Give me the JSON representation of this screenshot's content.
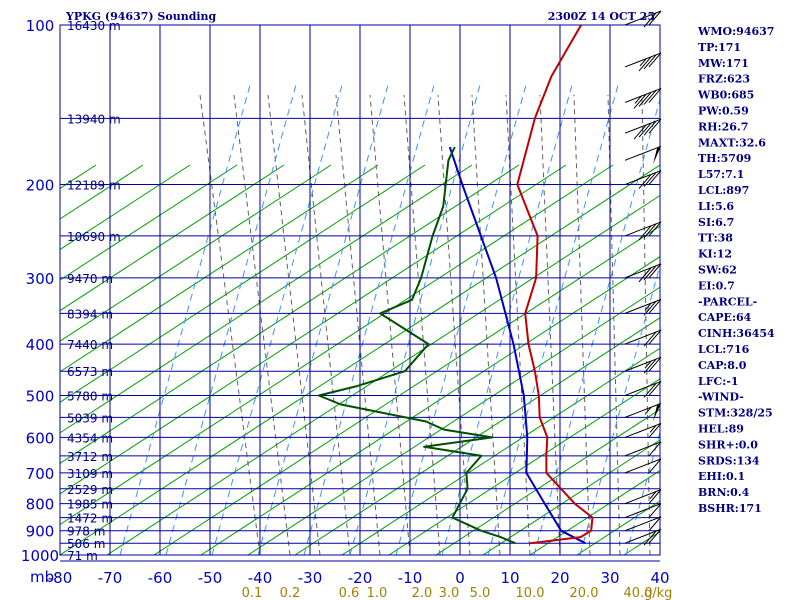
{
  "header": {
    "station": "YPKG (94637) Sounding",
    "time": "2300Z 14 OCT 25"
  },
  "colors": {
    "grid": "#0000a0",
    "dry_adiabat": "#00a000",
    "moist_adiabat": "#606060",
    "mixing_ratio": "#4090ff",
    "temperature": "#c00000",
    "dewpoint": "#005000",
    "parcel": "#0000c0",
    "mixing_label": "#a08000"
  },
  "chart_data": {
    "type": "skew-t",
    "pressure_unit": "mb",
    "temperature_unit": "C",
    "mixing_unit": "g/kg",
    "xlim": [
      -80,
      40
    ],
    "plim": [
      1000,
      100
    ],
    "pressure_ticks": [
      "100",
      "200",
      "300",
      "400",
      "500",
      "600",
      "700",
      "800",
      "900",
      "1000"
    ],
    "temperature_ticks": [
      "-80",
      "-70",
      "-60",
      "-50",
      "-40",
      "-30",
      "-20",
      "-10",
      "0",
      "10",
      "20",
      "30",
      "40"
    ],
    "mixing_ratio_labels": [
      "0.1",
      "0.2",
      "0.6",
      "1.0",
      "2.0",
      "3.0",
      "5.0",
      "10.0",
      "20.0",
      "40.0"
    ],
    "height_labels": [
      {
        "p": 100,
        "h": "16430 m"
      },
      {
        "p": 150,
        "h": "13940 m"
      },
      {
        "p": 200,
        "h": "12189 m"
      },
      {
        "p": 250,
        "h": "10690 m"
      },
      {
        "p": 300,
        "h": "9470 m"
      },
      {
        "p": 350,
        "h": "8394 m"
      },
      {
        "p": 400,
        "h": "7440 m"
      },
      {
        "p": 450,
        "h": "6573 m"
      },
      {
        "p": 500,
        "h": "5780 m"
      },
      {
        "p": 550,
        "h": "5039 m"
      },
      {
        "p": 600,
        "h": "4354 m"
      },
      {
        "p": 650,
        "h": "3712 m"
      },
      {
        "p": 700,
        "h": "3109 m"
      },
      {
        "p": 750,
        "h": "2529 m"
      },
      {
        "p": 800,
        "h": "1985 m"
      },
      {
        "p": 850,
        "h": "1472 m"
      },
      {
        "p": 900,
        "h": "978 m"
      },
      {
        "p": 950,
        "h": "506 m"
      },
      {
        "p": 1000,
        "h": "71 m"
      }
    ],
    "temperature_profile": [
      [
        950,
        12
      ],
      [
        925,
        21
      ],
      [
        900,
        22
      ],
      [
        850,
        20
      ],
      [
        800,
        14
      ],
      [
        700,
        3
      ],
      [
        650,
        0
      ],
      [
        600,
        -3
      ],
      [
        550,
        -8
      ],
      [
        500,
        -12
      ],
      [
        450,
        -17
      ],
      [
        400,
        -23
      ],
      [
        350,
        -29
      ],
      [
        300,
        -33
      ],
      [
        250,
        -40
      ],
      [
        200,
        -53
      ],
      [
        150,
        -61
      ],
      [
        125,
        -65
      ],
      [
        100,
        -68
      ]
    ],
    "dewpoint_profile": [
      [
        950,
        9
      ],
      [
        925,
        5
      ],
      [
        900,
        0
      ],
      [
        850,
        -8
      ],
      [
        800,
        -9
      ],
      [
        750,
        -10
      ],
      [
        700,
        -13
      ],
      [
        650,
        -13
      ],
      [
        625,
        -26
      ],
      [
        600,
        -14
      ],
      [
        580,
        -25
      ],
      [
        560,
        -30
      ],
      [
        520,
        -50
      ],
      [
        500,
        -56
      ],
      [
        480,
        -50
      ],
      [
        450,
        -43
      ],
      [
        400,
        -43
      ],
      [
        350,
        -58
      ],
      [
        330,
        -54
      ],
      [
        300,
        -56
      ],
      [
        250,
        -61
      ],
      [
        220,
        -64
      ],
      [
        180,
        -71
      ],
      [
        170,
        -72
      ]
    ],
    "parcel_profile": [
      [
        950,
        23
      ],
      [
        900,
        16
      ],
      [
        800,
        8
      ],
      [
        700,
        -1
      ],
      [
        600,
        -7
      ],
      [
        500,
        -15
      ],
      [
        400,
        -26
      ],
      [
        300,
        -41
      ],
      [
        200,
        -64
      ],
      [
        170,
        -73
      ]
    ],
    "wind_barbs": [
      {
        "p": 100,
        "spd": 20
      },
      {
        "p": 120,
        "spd": 35
      },
      {
        "p": 140,
        "spd": 45
      },
      {
        "p": 160,
        "spd": 40
      },
      {
        "p": 180,
        "spd": 50
      },
      {
        "p": 200,
        "spd": 30
      },
      {
        "p": 250,
        "spd": 30
      },
      {
        "p": 300,
        "spd": 30
      },
      {
        "p": 350,
        "spd": 25
      },
      {
        "p": 400,
        "spd": 20
      },
      {
        "p": 450,
        "spd": 25
      },
      {
        "p": 500,
        "spd": 20
      },
      {
        "p": 550,
        "spd": 55
      },
      {
        "p": 600,
        "spd": 15
      },
      {
        "p": 650,
        "spd": 10
      },
      {
        "p": 700,
        "spd": 10
      },
      {
        "p": 800,
        "spd": 15
      },
      {
        "p": 850,
        "spd": 10
      },
      {
        "p": 900,
        "spd": 10
      },
      {
        "p": 950,
        "spd": 20
      }
    ]
  },
  "indices": [
    "WMO:94637",
    "TP:171",
    "MW:171",
    "FRZ:623",
    "WB0:685",
    "PW:0.59",
    "RH:26.7",
    "MAXT:32.6",
    "TH:5709",
    "L57:7.1",
    "LCL:897",
    "LI:5.6",
    "SI:6.7",
    "TT:38",
    "KI:12",
    "SW:62",
    "EI:0.7",
    "-PARCEL-",
    "CAPE:64",
    "CINH:36454",
    "LCL:716",
    "CAP:8.0",
    "LFC:-1",
    "-WIND-",
    "STM:328/25",
    "HEL:89",
    "SHR+:0.0",
    "SRDS:134",
    "EHI:0.1",
    "BRN:0.4",
    "BSHR:171"
  ]
}
